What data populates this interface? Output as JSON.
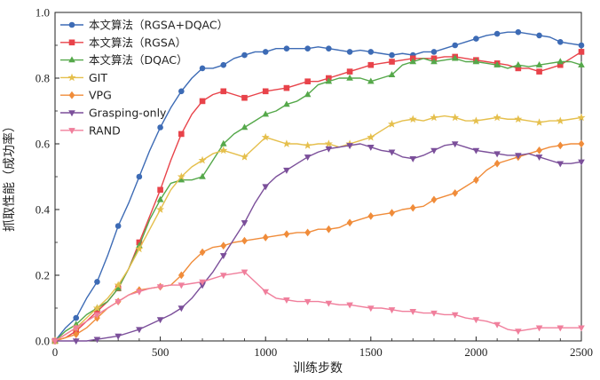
{
  "chart_data": {
    "type": "line",
    "title": "",
    "xlabel": "训练步数",
    "ylabel": "抓取性能（成功率）",
    "xlim": [
      0,
      2500
    ],
    "ylim": [
      0.0,
      1.0
    ],
    "xticks": [
      0,
      500,
      1000,
      1500,
      2000,
      2500
    ],
    "xtick_labels": [
      "0",
      "500",
      "1000",
      "1500",
      "2000",
      "2500"
    ],
    "yticks": [
      0.0,
      0.2,
      0.4,
      0.6,
      0.8,
      1.0
    ],
    "ytick_labels": [
      "0.0",
      "0.2",
      "0.4",
      "0.6",
      "0.8",
      "1.0"
    ],
    "grid": false,
    "legend_position": "top-left",
    "series": [
      {
        "name": "本文算法（RGSA+DQAC）",
        "color": "#3d6bb5",
        "marker": "circle",
        "x": [
          0,
          50,
          100,
          150,
          200,
          250,
          300,
          350,
          400,
          450,
          500,
          550,
          600,
          650,
          700,
          750,
          800,
          850,
          900,
          950,
          1000,
          1050,
          1100,
          1150,
          1200,
          1250,
          1300,
          1350,
          1400,
          1450,
          1500,
          1550,
          1600,
          1650,
          1700,
          1750,
          1800,
          1850,
          1900,
          1950,
          2000,
          2050,
          2100,
          2150,
          2200,
          2250,
          2300,
          2350,
          2400,
          2450,
          2500
        ],
        "values": [
          0.0,
          0.04,
          0.07,
          0.13,
          0.18,
          0.26,
          0.35,
          0.42,
          0.5,
          0.58,
          0.65,
          0.71,
          0.76,
          0.8,
          0.83,
          0.83,
          0.84,
          0.86,
          0.87,
          0.88,
          0.88,
          0.89,
          0.89,
          0.89,
          0.89,
          0.895,
          0.89,
          0.885,
          0.88,
          0.885,
          0.88,
          0.875,
          0.87,
          0.875,
          0.87,
          0.88,
          0.88,
          0.89,
          0.9,
          0.91,
          0.92,
          0.93,
          0.935,
          0.94,
          0.94,
          0.935,
          0.93,
          0.925,
          0.91,
          0.905,
          0.9
        ]
      },
      {
        "name": "本文算法（RGSA）",
        "color": "#e8434a",
        "marker": "square",
        "x": [
          0,
          50,
          100,
          150,
          200,
          250,
          300,
          350,
          400,
          450,
          500,
          550,
          600,
          650,
          700,
          750,
          800,
          850,
          900,
          950,
          1000,
          1050,
          1100,
          1150,
          1200,
          1250,
          1300,
          1350,
          1400,
          1450,
          1500,
          1550,
          1600,
          1650,
          1700,
          1750,
          1800,
          1850,
          1900,
          1950,
          2000,
          2050,
          2100,
          2150,
          2200,
          2250,
          2300,
          2350,
          2400,
          2450,
          2500
        ],
        "values": [
          0.0,
          0.01,
          0.03,
          0.06,
          0.09,
          0.12,
          0.16,
          0.22,
          0.3,
          0.38,
          0.46,
          0.55,
          0.63,
          0.69,
          0.73,
          0.75,
          0.76,
          0.75,
          0.74,
          0.75,
          0.76,
          0.765,
          0.77,
          0.78,
          0.79,
          0.79,
          0.8,
          0.81,
          0.82,
          0.83,
          0.84,
          0.845,
          0.85,
          0.855,
          0.86,
          0.86,
          0.86,
          0.865,
          0.865,
          0.86,
          0.855,
          0.85,
          0.845,
          0.84,
          0.83,
          0.83,
          0.82,
          0.83,
          0.84,
          0.86,
          0.88
        ]
      },
      {
        "name": "本文算法（DQAC）",
        "color": "#55a84a",
        "marker": "triangle",
        "x": [
          0,
          50,
          100,
          150,
          200,
          250,
          300,
          350,
          400,
          450,
          500,
          550,
          600,
          650,
          700,
          750,
          800,
          850,
          900,
          950,
          1000,
          1050,
          1100,
          1150,
          1200,
          1250,
          1300,
          1350,
          1400,
          1450,
          1500,
          1550,
          1600,
          1650,
          1700,
          1750,
          1800,
          1850,
          1900,
          1950,
          2000,
          2050,
          2100,
          2150,
          2200,
          2250,
          2300,
          2350,
          2400,
          2450,
          2500
        ],
        "values": [
          0.0,
          0.03,
          0.05,
          0.08,
          0.1,
          0.12,
          0.16,
          0.22,
          0.29,
          0.37,
          0.43,
          0.48,
          0.49,
          0.49,
          0.5,
          0.55,
          0.6,
          0.63,
          0.65,
          0.67,
          0.69,
          0.7,
          0.72,
          0.73,
          0.75,
          0.78,
          0.79,
          0.8,
          0.8,
          0.8,
          0.79,
          0.8,
          0.81,
          0.84,
          0.85,
          0.86,
          0.85,
          0.855,
          0.86,
          0.85,
          0.85,
          0.845,
          0.84,
          0.83,
          0.84,
          0.835,
          0.84,
          0.845,
          0.85,
          0.85,
          0.84
        ]
      },
      {
        "name": "GIT",
        "color": "#e5bf4c",
        "marker": "star",
        "x": [
          0,
          50,
          100,
          150,
          200,
          250,
          300,
          350,
          400,
          450,
          500,
          550,
          600,
          650,
          700,
          750,
          800,
          850,
          900,
          950,
          1000,
          1050,
          1100,
          1150,
          1200,
          1250,
          1300,
          1350,
          1400,
          1450,
          1500,
          1550,
          1600,
          1650,
          1700,
          1750,
          1800,
          1850,
          1900,
          1950,
          2000,
          2050,
          2100,
          2150,
          2200,
          2250,
          2300,
          2350,
          2400,
          2450,
          2500
        ],
        "values": [
          0.0,
          0.02,
          0.04,
          0.07,
          0.1,
          0.13,
          0.17,
          0.22,
          0.28,
          0.34,
          0.4,
          0.46,
          0.5,
          0.53,
          0.55,
          0.57,
          0.58,
          0.57,
          0.56,
          0.59,
          0.62,
          0.61,
          0.6,
          0.6,
          0.595,
          0.6,
          0.6,
          0.59,
          0.6,
          0.61,
          0.62,
          0.64,
          0.66,
          0.67,
          0.675,
          0.67,
          0.68,
          0.685,
          0.68,
          0.67,
          0.67,
          0.675,
          0.68,
          0.675,
          0.675,
          0.67,
          0.665,
          0.67,
          0.67,
          0.675,
          0.68
        ]
      },
      {
        "name": "VPG",
        "color": "#f08c3a",
        "marker": "diamond",
        "x": [
          0,
          50,
          100,
          150,
          200,
          250,
          300,
          350,
          400,
          450,
          500,
          550,
          600,
          650,
          700,
          750,
          800,
          850,
          900,
          950,
          1000,
          1050,
          1100,
          1150,
          1200,
          1250,
          1300,
          1350,
          1400,
          1450,
          1500,
          1550,
          1600,
          1650,
          1700,
          1750,
          1800,
          1850,
          1900,
          1950,
          2000,
          2050,
          2100,
          2150,
          2200,
          2250,
          2300,
          2350,
          2400,
          2450,
          2500
        ],
        "values": [
          0.0,
          0.01,
          0.02,
          0.04,
          0.07,
          0.1,
          0.12,
          0.14,
          0.155,
          0.16,
          0.165,
          0.17,
          0.2,
          0.24,
          0.27,
          0.285,
          0.29,
          0.3,
          0.305,
          0.31,
          0.315,
          0.32,
          0.325,
          0.33,
          0.33,
          0.34,
          0.34,
          0.345,
          0.36,
          0.37,
          0.38,
          0.385,
          0.39,
          0.4,
          0.405,
          0.41,
          0.43,
          0.44,
          0.45,
          0.47,
          0.49,
          0.52,
          0.54,
          0.55,
          0.56,
          0.57,
          0.58,
          0.59,
          0.595,
          0.6,
          0.6
        ]
      },
      {
        "name": "Grasping-only",
        "color": "#7b4f9a",
        "marker": "triangle-down",
        "x": [
          0,
          50,
          100,
          150,
          200,
          250,
          300,
          350,
          400,
          450,
          500,
          550,
          600,
          650,
          700,
          750,
          800,
          850,
          900,
          950,
          1000,
          1050,
          1100,
          1150,
          1200,
          1250,
          1300,
          1350,
          1400,
          1450,
          1500,
          1550,
          1600,
          1650,
          1700,
          1750,
          1800,
          1850,
          1900,
          1950,
          2000,
          2050,
          2100,
          2150,
          2200,
          2250,
          2300,
          2350,
          2400,
          2450,
          2500
        ],
        "values": [
          0.0,
          0.0,
          0.0,
          0.0,
          0.005,
          0.01,
          0.015,
          0.025,
          0.035,
          0.05,
          0.065,
          0.08,
          0.1,
          0.13,
          0.17,
          0.21,
          0.26,
          0.31,
          0.36,
          0.42,
          0.47,
          0.5,
          0.52,
          0.54,
          0.56,
          0.575,
          0.585,
          0.59,
          0.595,
          0.6,
          0.59,
          0.58,
          0.575,
          0.56,
          0.555,
          0.565,
          0.58,
          0.595,
          0.6,
          0.59,
          0.58,
          0.575,
          0.57,
          0.565,
          0.565,
          0.57,
          0.56,
          0.55,
          0.54,
          0.54,
          0.545
        ]
      },
      {
        "name": "RAND",
        "color": "#f07f9c",
        "marker": "triangle-down",
        "x": [
          0,
          50,
          100,
          150,
          200,
          250,
          300,
          350,
          400,
          450,
          500,
          550,
          600,
          650,
          700,
          750,
          800,
          850,
          900,
          950,
          1000,
          1050,
          1100,
          1150,
          1200,
          1250,
          1300,
          1350,
          1400,
          1450,
          1500,
          1550,
          1600,
          1650,
          1700,
          1750,
          1800,
          1850,
          1900,
          1950,
          2000,
          2050,
          2100,
          2150,
          2200,
          2250,
          2300,
          2350,
          2400,
          2450,
          2500
        ],
        "values": [
          0.0,
          0.02,
          0.04,
          0.06,
          0.08,
          0.1,
          0.12,
          0.14,
          0.15,
          0.16,
          0.165,
          0.17,
          0.17,
          0.175,
          0.18,
          0.19,
          0.2,
          0.205,
          0.21,
          0.18,
          0.15,
          0.13,
          0.125,
          0.12,
          0.12,
          0.12,
          0.115,
          0.11,
          0.11,
          0.105,
          0.1,
          0.1,
          0.095,
          0.09,
          0.09,
          0.085,
          0.085,
          0.08,
          0.08,
          0.07,
          0.065,
          0.06,
          0.05,
          0.035,
          0.03,
          0.035,
          0.04,
          0.04,
          0.04,
          0.04,
          0.04
        ]
      }
    ]
  }
}
